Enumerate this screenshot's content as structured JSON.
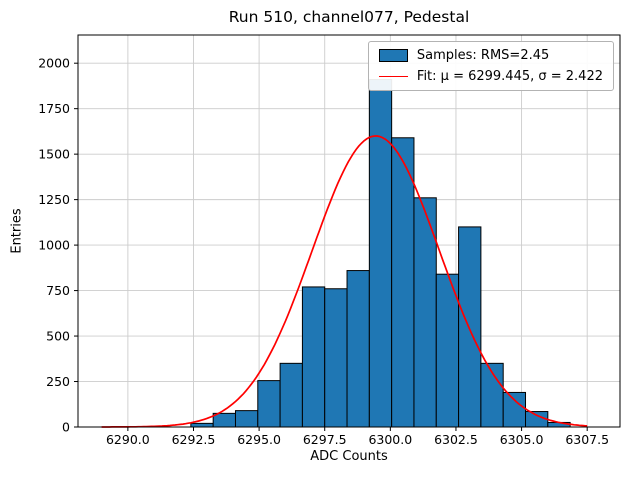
{
  "figure": {
    "title": "Run 510, channel077, Pedestal",
    "xlabel": "ADC Counts",
    "ylabel": "Entries"
  },
  "legend": {
    "items": [
      {
        "label": "Samples: RMS=2.45",
        "type": "patch",
        "color": "#1f77b4"
      },
      {
        "label": "Fit: μ = 6299.445, σ = 2.422",
        "type": "line",
        "color": "#ff0000"
      }
    ]
  },
  "chart_data": {
    "type": "bar",
    "subtype": "histogram",
    "title": "Run 510, channel077, Pedestal",
    "xlabel": "ADC Counts",
    "ylabel": "Entries",
    "xlim": [
      6288.1,
      6308.75
    ],
    "ylim": [
      0,
      2155
    ],
    "xticks": [
      6290.0,
      6292.5,
      6295.0,
      6297.5,
      6300.0,
      6302.5,
      6305.0,
      6307.5
    ],
    "yticks": [
      0,
      250,
      500,
      750,
      1000,
      1250,
      1500,
      1750,
      2000
    ],
    "grid": true,
    "legend_position": "upper right",
    "bar_color": "#1f77b4",
    "bar_edge_color": "#000000",
    "fit_color": "#ff0000",
    "bin_edges": [
      6292.4,
      6293.25,
      6294.1,
      6294.95,
      6295.8,
      6296.65,
      6297.5,
      6298.35,
      6299.2,
      6300.05,
      6300.9,
      6301.75,
      6302.6,
      6303.45,
      6304.3,
      6305.15,
      6306.0,
      6306.85
    ],
    "counts": [
      20,
      75,
      90,
      255,
      350,
      770,
      760,
      860,
      1910,
      1590,
      1260,
      840,
      1100,
      350,
      190,
      85,
      25
    ],
    "fit": {
      "mu": 6299.445,
      "sigma": 2.422,
      "amplitude": 1600,
      "range": [
        6289.0,
        6307.6
      ]
    },
    "legend_labels": [
      "Samples: RMS=2.45",
      "Fit: μ = 6299.445, σ = 2.422"
    ],
    "rms": 2.45
  }
}
